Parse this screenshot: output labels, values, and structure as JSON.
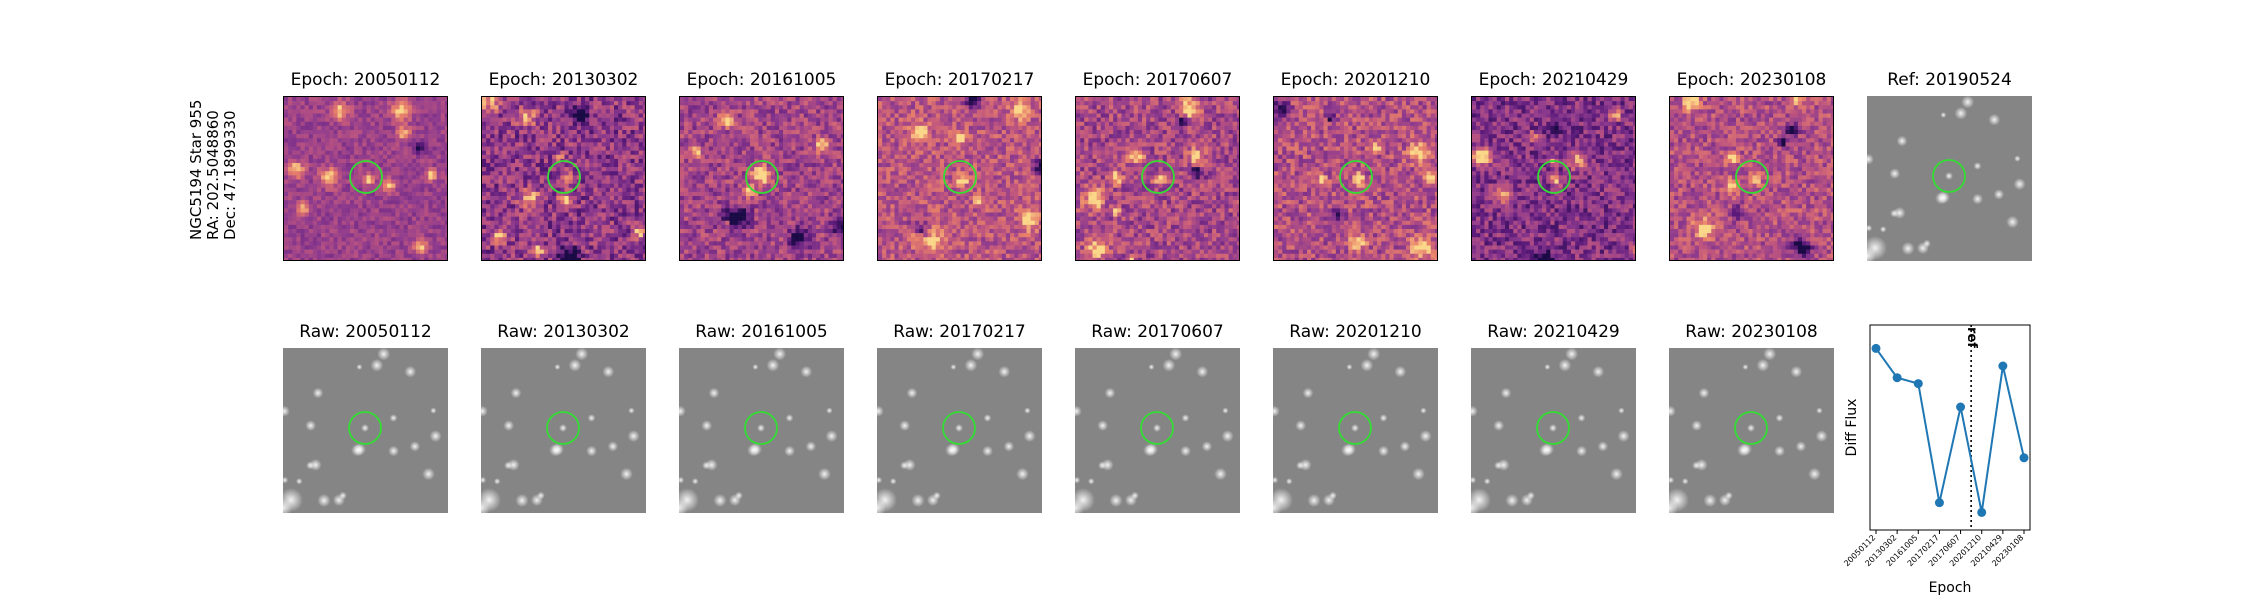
{
  "object_label": {
    "line1": "NGC5194 Star 955",
    "line2": "RA: 202.5048860",
    "line3": "Dec: 47.1899330"
  },
  "colors": {
    "diff_cmap": [
      "#1a0a45",
      "#5b1a7a",
      "#8e3b8e",
      "#c0567e",
      "#e8806a",
      "#fbd78a"
    ],
    "raw_gray": "#858585",
    "aperture": "#33dd33",
    "line": "#1f77b4"
  },
  "difference_panels": [
    {
      "title": "Epoch: 20050112"
    },
    {
      "title": "Epoch: 20130302"
    },
    {
      "title": "Epoch: 20161005"
    },
    {
      "title": "Epoch: 20170217"
    },
    {
      "title": "Epoch: 20170607"
    },
    {
      "title": "Epoch: 20201210"
    },
    {
      "title": "Epoch: 20210429"
    },
    {
      "title": "Epoch: 20230108"
    }
  ],
  "reference_panel": {
    "title": "Ref: 20190524"
  },
  "raw_panels": [
    {
      "title": "Raw: 20050112"
    },
    {
      "title": "Raw: 20130302"
    },
    {
      "title": "Raw: 20161005"
    },
    {
      "title": "Raw: 20170217"
    },
    {
      "title": "Raw: 20170607"
    },
    {
      "title": "Raw: 20201210"
    },
    {
      "title": "Raw: 20210429"
    },
    {
      "title": "Raw: 20230108"
    }
  ],
  "chart_data": {
    "type": "line",
    "xlabel": "Epoch",
    "ylabel": "Diff Flux",
    "categories": [
      "20050112",
      "20130302",
      "20161005",
      "20170217",
      "20170607",
      "20201210",
      "20210429",
      "20230108"
    ],
    "values": [
      0.93,
      0.78,
      0.75,
      0.14,
      0.63,
      0.09,
      0.84,
      0.37
    ],
    "ylim": [
      0,
      1.05
    ],
    "reference_line": {
      "position": 4.5,
      "label": "ref"
    },
    "grid": false
  }
}
